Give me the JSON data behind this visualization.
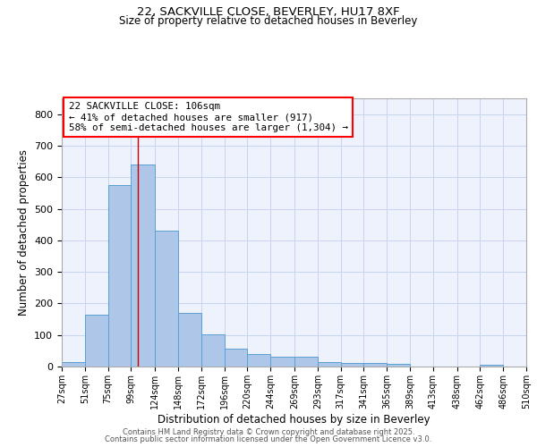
{
  "title1": "22, SACKVILLE CLOSE, BEVERLEY, HU17 8XF",
  "title2": "Size of property relative to detached houses in Beverley",
  "xlabel": "Distribution of detached houses by size in Beverley",
  "ylabel": "Number of detached properties",
  "bar_color": "#aec6e8",
  "bar_edge_color": "#5a9fd4",
  "background_color": "#eef2fc",
  "grid_color": "#c8d4f0",
  "annotation_text": "22 SACKVILLE CLOSE: 106sqm\n← 41% of detached houses are smaller (917)\n58% of semi-detached houses are larger (1,304) →",
  "vline_x": 106,
  "vline_color": "#cc0000",
  "bin_edges": [
    27,
    51,
    75,
    99,
    124,
    148,
    172,
    196,
    220,
    244,
    269,
    293,
    317,
    341,
    365,
    389,
    413,
    438,
    462,
    486,
    510
  ],
  "bar_heights": [
    15,
    165,
    575,
    640,
    430,
    170,
    103,
    57,
    40,
    30,
    30,
    15,
    10,
    10,
    8,
    0,
    0,
    0,
    5,
    0
  ],
  "ylim": [
    0,
    850
  ],
  "yticks": [
    0,
    100,
    200,
    300,
    400,
    500,
    600,
    700,
    800
  ],
  "footer1": "Contains HM Land Registry data © Crown copyright and database right 2025.",
  "footer2": "Contains public sector information licensed under the Open Government Licence v3.0."
}
